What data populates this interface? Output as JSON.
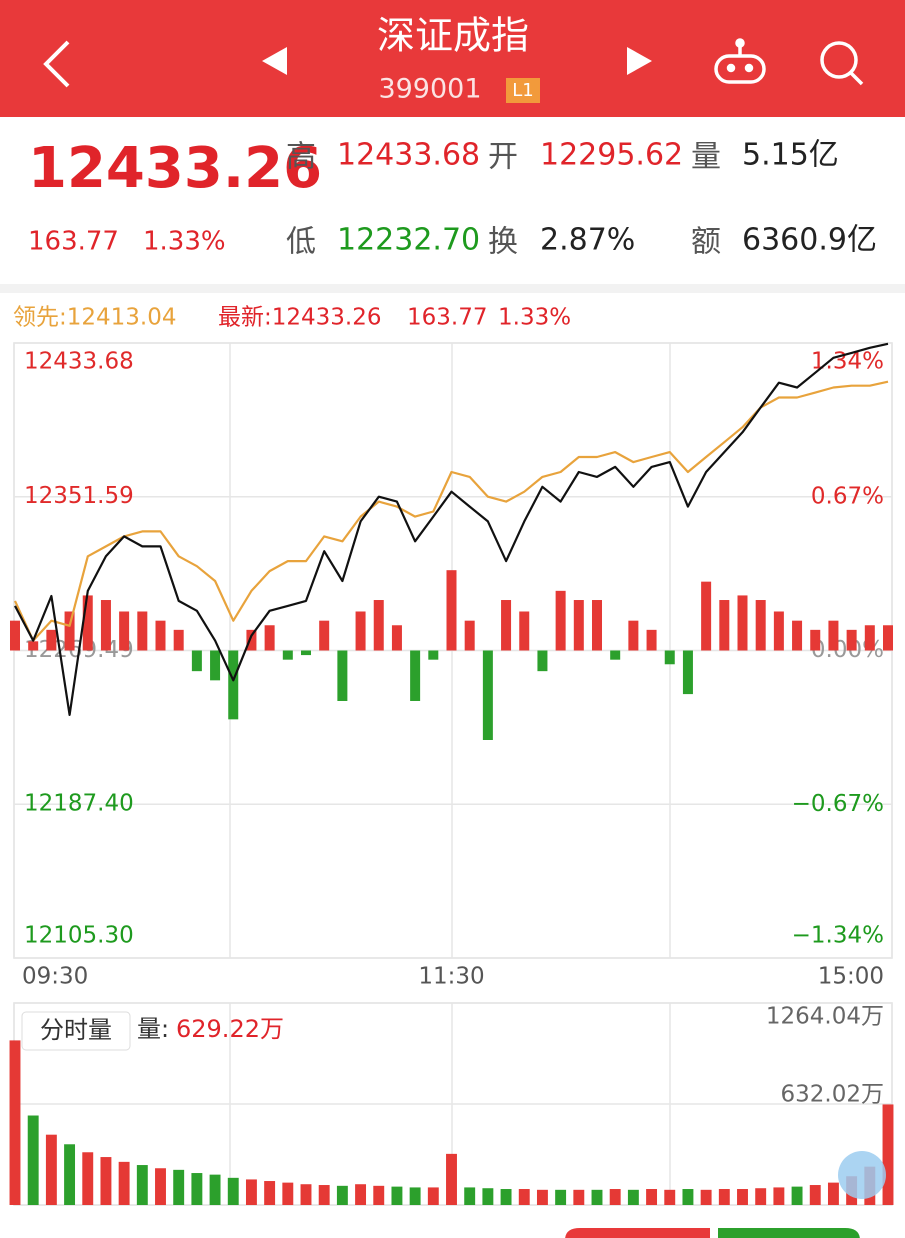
{
  "header": {
    "title": "深证成指",
    "code": "399001",
    "badge": "L1"
  },
  "quote": {
    "price": "12433.26",
    "change": "163.77",
    "percent": "1.33%",
    "high_label": "高",
    "high": "12433.68",
    "open_label": "开",
    "open": "12295.62",
    "volume_label": "量",
    "volume": "5.15亿",
    "low_label": "低",
    "low": "12232.70",
    "turnover_label": "换",
    "turnover": "2.87%",
    "amount_label": "额",
    "amount": "6360.9亿"
  },
  "legend": {
    "leading": "领先:12413.04",
    "latest": "最新:12433.26",
    "latest_change": "163.77",
    "latest_percent": "1.33%"
  },
  "volume_panel": {
    "button": "分时量",
    "volume_label": "量:",
    "volume": "629.22万"
  },
  "chart_data": [
    {
      "type": "line",
      "categories": [
        "09:30",
        null,
        null,
        null,
        null,
        null,
        null,
        null,
        null,
        null,
        null,
        null,
        null,
        null,
        null,
        null,
        null,
        null,
        null,
        null,
        null,
        null,
        null,
        null,
        "11:30",
        null,
        null,
        null,
        null,
        null,
        null,
        null,
        null,
        null,
        null,
        null,
        null,
        null,
        null,
        null,
        null,
        null,
        null,
        null,
        null,
        null,
        null,
        null,
        "15:00"
      ],
      "ylim": [
        12105.3,
        12433.68
      ],
      "yticks": [
        {
          "value": 12105.3,
          "label": "12105.30"
        },
        {
          "value": 12187.4,
          "label": "12187.40"
        },
        12269.49,
        12351.59,
        12433.68
      ],
      "y2lim": [
        -1.34,
        1.34
      ],
      "y2ticks": [
        {
          "value": -1.34,
          "label": "−1.34%"
        },
        {
          "value": -0.67,
          "label": "−0.67%"
        },
        {
          "value": 0,
          "label": "0.00%"
        },
        {
          "value": 0.67,
          "label": "0.67%"
        },
        {
          "value": 1.34,
          "label": "1.34%"
        }
      ],
      "grid": true,
      "up_color": "#e02a2a",
      "down_color": "#1e9a1e",
      "series": [
        {
          "color": "#111111",
          "values": [
            12293.3,
            12274.8,
            12298.6,
            12235.1,
            12301.3,
            12319.8,
            12330.4,
            12325.1,
            12325.1,
            12296.0,
            12290.7,
            12274.8,
            12253.6,
            12277.4,
            12290.7,
            12293.3,
            12296.0,
            12322.5,
            12306.6,
            12338.4,
            12351.6,
            12349.0,
            12327.8,
            12341.0,
            12354.3,
            12346.3,
            12338.4,
            12317.2,
            12338.4,
            12356.9,
            12349.0,
            12364.8,
            12362.2,
            12367.5,
            12356.9,
            12367.5,
            12370.1,
            12346.3,
            12364.8,
            12375.4,
            12386.0,
            12399.3,
            12412.5,
            12409.9,
            12417.8,
            12425.8,
            12428.4,
            12431.1,
            12433.26
          ]
        },
        {
          "color": "#e8a33c",
          "values": [
            12296.0,
            12274.8,
            12285.4,
            12282.7,
            12319.8,
            12325.1,
            12330.4,
            12333.1,
            12333.1,
            12319.8,
            12314.5,
            12306.6,
            12285.4,
            12301.3,
            12311.9,
            12317.2,
            12317.2,
            12330.4,
            12327.8,
            12341.0,
            12349.0,
            12346.3,
            12341.0,
            12343.7,
            12364.8,
            12362.2,
            12351.6,
            12349.0,
            12354.3,
            12362.2,
            12364.8,
            12372.8,
            12372.8,
            12375.4,
            12370.1,
            12372.8,
            12375.4,
            12364.8,
            12372.8,
            12380.7,
            12388.7,
            12399.3,
            12404.6,
            12404.6,
            12407.2,
            12409.9,
            12410.9,
            12410.9,
            12413.04
          ]
        },
        {
          "type": "bar",
          "axis": "y2",
          "color": "#e53935",
          "negative_color": "#2ca02c",
          "values": [
            0.13,
            0.04,
            0.09,
            0.17,
            0.24,
            0.22,
            0.17,
            0.17,
            0.13,
            0.09,
            -0.09,
            -0.13,
            -0.3,
            0.09,
            0.11,
            -0.04,
            -0.02,
            0.13,
            -0.22,
            0.17,
            0.22,
            0.11,
            -0.22,
            -0.04,
            0.35,
            0.13,
            -0.39,
            0.22,
            0.17,
            -0.09,
            0.26,
            0.22,
            0.22,
            -0.04,
            0.13,
            0.09,
            -0.06,
            -0.19,
            0.3,
            0.22,
            0.24,
            0.22,
            0.17,
            0.13,
            0.09,
            0.13,
            0.09,
            0.11,
            0.11
          ]
        }
      ]
    },
    {
      "type": "bar",
      "ylim": [
        0,
        1264.04
      ],
      "yticks": [
        {
          "value": 632.02,
          "label": "632.02万"
        },
        {
          "value": 1264.04,
          "label": "1264.04万"
        }
      ],
      "up_color": "#e53935",
      "down_color": "#2ca02c",
      "values": [
        1030,
        560,
        440,
        380,
        330,
        300,
        270,
        250,
        230,
        220,
        200,
        190,
        170,
        160,
        150,
        140,
        130,
        125,
        120,
        130,
        120,
        115,
        110,
        110,
        320,
        110,
        105,
        100,
        100,
        95,
        95,
        95,
        95,
        100,
        95,
        100,
        95,
        100,
        95,
        100,
        100,
        105,
        110,
        115,
        125,
        140,
        180,
        240,
        629.22
      ]
    }
  ]
}
